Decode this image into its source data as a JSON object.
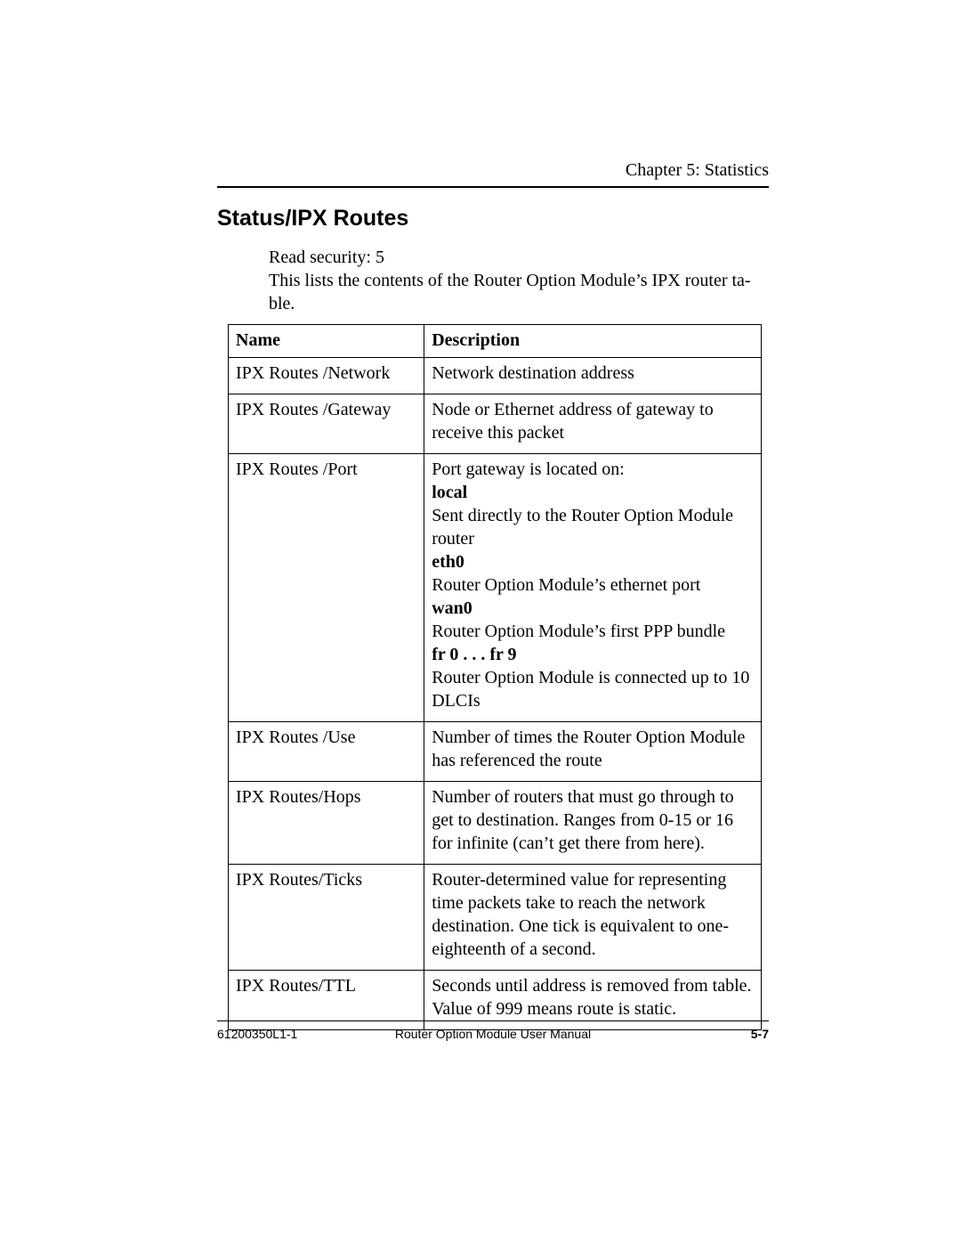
{
  "header": {
    "chapter": "Chapter 5:  Statistics"
  },
  "section": {
    "title": "Status/IPX Routes",
    "intro_line1": "Read security: 5",
    "intro_line2": "This lists the contents of the Router Option Module’s IPX router ta-",
    "intro_line3": "ble."
  },
  "table": {
    "columns": {
      "name": "Name",
      "description": "Description"
    },
    "rows": [
      {
        "name": "IPX Routes /Network",
        "desc": "Network destination address"
      },
      {
        "name": "IPX Routes /Gateway",
        "desc": "Node or Ethernet address of gateway to receive this packet"
      },
      {
        "name": "IPX Routes /Port",
        "port": {
          "intro": "Port gateway is located on:",
          "k1": "local",
          "v1": "Sent directly to the Router Option Module router",
          "k2": "eth0",
          "v2": "Router Option Module’s ethernet port",
          "k3": "wan0",
          "v3": "Router Option Module’s first PPP bundle",
          "k4": "fr 0 . . . fr 9",
          "v4": "Router Option Module is connected up to 10 DLCIs"
        }
      },
      {
        "name": "IPX Routes /Use",
        "desc": "Number of times the Router Option Module has referenced the route"
      },
      {
        "name": "IPX Routes/Hops",
        "desc": "Number of routers that must go through to get to destination.  Ranges from 0-15 or 16 for infinite (can’t get there from here)."
      },
      {
        "name": "IPX Routes/Ticks",
        "desc": "Router-determined value for representing time packets take to reach the network destination. One tick is equivalent to one-eighteenth of a second."
      },
      {
        "name": "IPX Routes/TTL",
        "desc": "Seconds until address is removed from table. Value of 999 means route is static."
      }
    ]
  },
  "footer": {
    "doc_id": "61200350L1-1",
    "manual": "Router Option Module User Manual",
    "page": "5-7"
  }
}
